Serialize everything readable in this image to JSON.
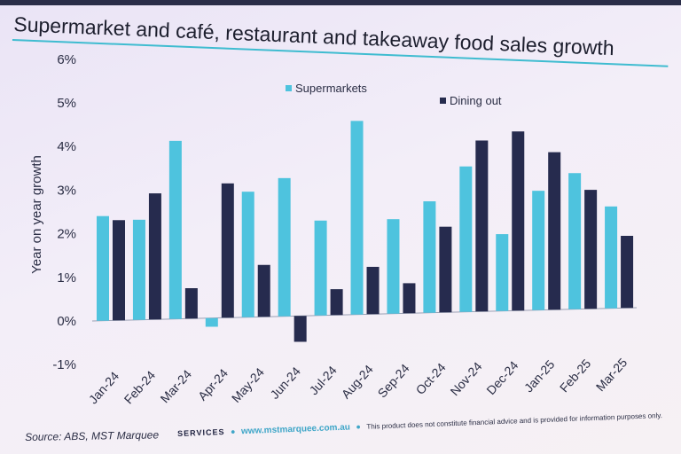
{
  "footer": {
    "source": "Source: ABS, MST Marquee",
    "brand": "SERVICES",
    "url": "www.mstmarquee.com.au",
    "disclaimer": "This product does not constitute financial advice and is provided for information purposes only."
  },
  "chart_data": {
    "type": "bar",
    "title": "Supermarket and café, restaurant and takeaway food sales growth",
    "ylabel": "Year on year growth",
    "xlabel": "",
    "ylim": [
      -1,
      6
    ],
    "yticks": [
      "-1%",
      "0%",
      "1%",
      "2%",
      "3%",
      "4%",
      "5%",
      "6%"
    ],
    "grid": false,
    "legend_position": "top-center",
    "categories": [
      "Jan-24",
      "Feb-24",
      "Mar-24",
      "Apr-24",
      "May-24",
      "Jun-24",
      "Jul-24",
      "Aug-24",
      "Sep-24",
      "Oct-24",
      "Nov-24",
      "Dec-24",
      "Jan-25",
      "Feb-25",
      "Mar-25"
    ],
    "series": [
      {
        "name": "Supermarkets",
        "color": "#4ec3de",
        "values": [
          2.4,
          2.3,
          4.1,
          -0.2,
          2.9,
          3.2,
          2.2,
          4.5,
          2.2,
          2.6,
          3.4,
          1.8,
          2.8,
          3.2,
          2.4
        ]
      },
      {
        "name": "Dining out",
        "color": "#262b4e",
        "values": [
          2.3,
          2.9,
          0.7,
          3.1,
          1.2,
          -0.6,
          0.6,
          1.1,
          0.7,
          2.0,
          4.0,
          4.2,
          3.7,
          2.8,
          1.7
        ]
      }
    ]
  }
}
